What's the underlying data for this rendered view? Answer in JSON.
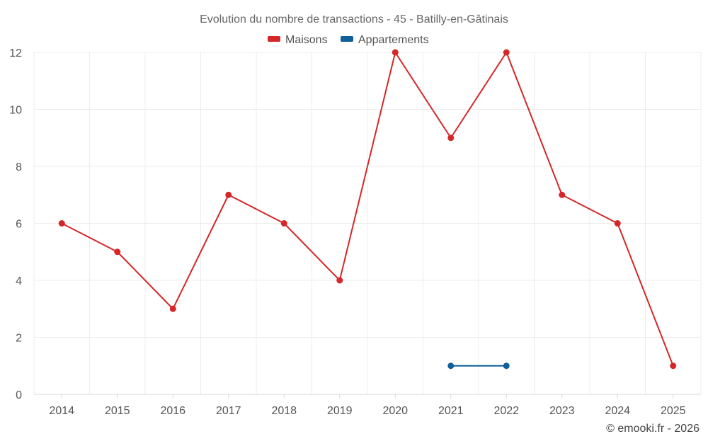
{
  "chart_data": {
    "type": "line",
    "title": "Evolution du nombre de transactions - 45 - Batilly-en-Gâtinais",
    "xlabel": "",
    "ylabel": "",
    "categories": [
      "2014",
      "2015",
      "2016",
      "2017",
      "2018",
      "2019",
      "2020",
      "2021",
      "2022",
      "2023",
      "2024",
      "2025"
    ],
    "ylim": [
      0,
      12
    ],
    "yticks": [
      0,
      2,
      4,
      6,
      8,
      10,
      12
    ],
    "grid": true,
    "legend_position": "top-center",
    "series": [
      {
        "name": "Maisons",
        "color": "#d62728",
        "values": [
          6,
          5,
          3,
          7,
          6,
          4,
          12,
          9,
          12,
          7,
          6,
          1
        ]
      },
      {
        "name": "Appartements",
        "color": "#0f5f9a",
        "values": [
          null,
          null,
          null,
          null,
          null,
          null,
          null,
          1,
          1,
          null,
          null,
          null
        ]
      }
    ]
  },
  "credit": "© emooki.fr - 2026"
}
